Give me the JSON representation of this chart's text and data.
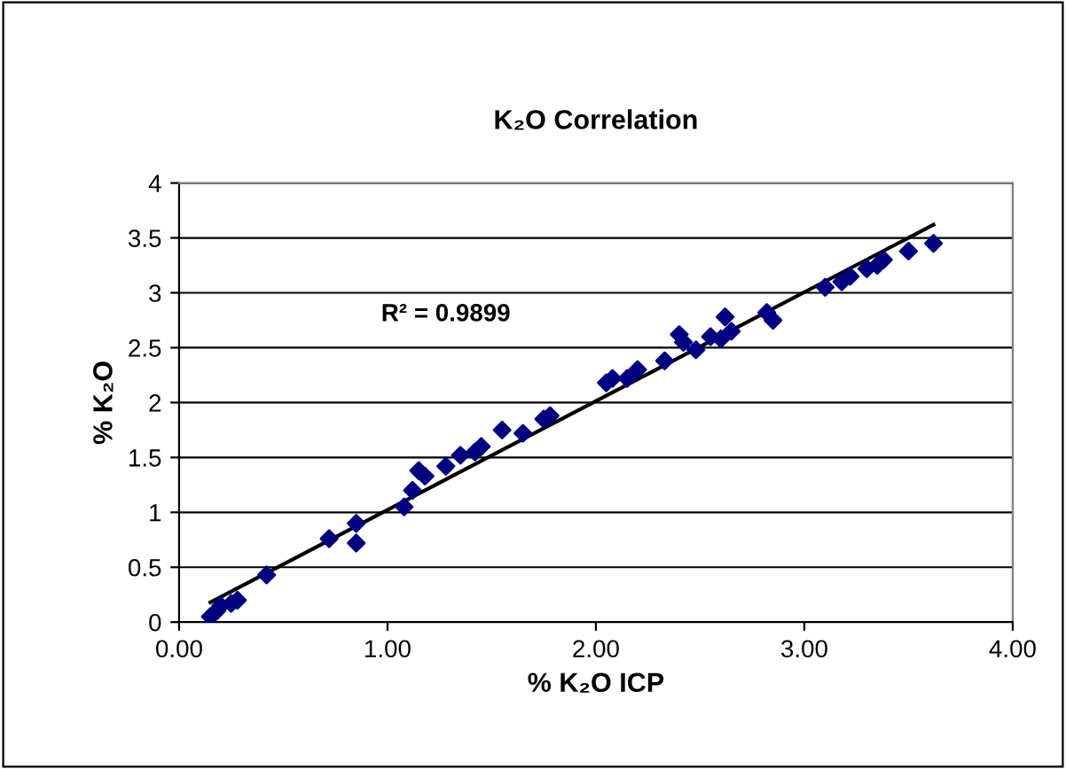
{
  "chart_data": {
    "type": "scatter",
    "title": "K₂O Correlation",
    "xlabel": "% K₂O ICP",
    "ylabel": "% K₂O",
    "annotations": [
      "R² = 0.9899"
    ],
    "grid": "y",
    "xlim": [
      0,
      4
    ],
    "ylim": [
      0,
      4
    ],
    "xticks": [
      {
        "value": 0,
        "label": "0.00"
      },
      {
        "value": 1,
        "label": "1.00"
      },
      {
        "value": 2,
        "label": "2.00"
      },
      {
        "value": 3,
        "label": "3.00"
      },
      {
        "value": 4,
        "label": "4.00"
      }
    ],
    "yticks": [
      0,
      0.5,
      1,
      1.5,
      2,
      2.5,
      3,
      3.5,
      4
    ],
    "series": [
      {
        "color": "#000080",
        "marker": "diamond",
        "x": [
          0.15,
          0.18,
          0.2,
          0.25,
          0.28,
          0.42,
          0.72,
          0.85,
          0.85,
          1.08,
          1.12,
          1.15,
          1.18,
          1.28,
          1.35,
          1.42,
          1.45,
          1.55,
          1.65,
          1.75,
          1.78,
          2.05,
          2.08,
          2.15,
          2.2,
          2.33,
          2.4,
          2.42,
          2.48,
          2.55,
          2.6,
          2.62,
          2.65,
          2.82,
          2.85,
          3.1,
          3.18,
          3.22,
          3.3,
          3.35,
          3.38,
          3.5,
          3.62
        ],
        "values": [
          0.05,
          0.1,
          0.15,
          0.17,
          0.2,
          0.43,
          0.76,
          0.9,
          0.72,
          1.05,
          1.2,
          1.38,
          1.33,
          1.42,
          1.52,
          1.55,
          1.6,
          1.75,
          1.72,
          1.85,
          1.88,
          2.18,
          2.22,
          2.22,
          2.3,
          2.38,
          2.62,
          2.55,
          2.48,
          2.6,
          2.58,
          2.78,
          2.65,
          2.82,
          2.75,
          3.05,
          3.1,
          3.15,
          3.22,
          3.25,
          3.3,
          3.38,
          3.45
        ]
      },
      {
        "type": "line",
        "color": "#000000",
        "x": [
          0.15,
          3.62
        ],
        "values": [
          0.18,
          3.62
        ]
      }
    ]
  }
}
